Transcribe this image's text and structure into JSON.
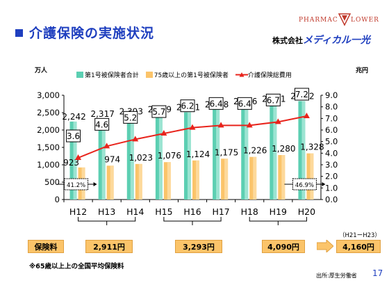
{
  "header": {
    "title": "介護保険の実施状況",
    "logo_left": "PHARMAC",
    "logo_right": "LOWER",
    "company_prefix": "株式会社",
    "company_name": "メディカル一光"
  },
  "units": {
    "left": "万人",
    "right": "兆円"
  },
  "chart_data": {
    "type": "bar",
    "categories": [
      "H12",
      "H13",
      "H14",
      "H15",
      "H16",
      "H17",
      "H18",
      "H19",
      "H20"
    ],
    "ylim": [
      0,
      3000
    ],
    "y2lim": [
      0,
      9
    ],
    "yticks": [
      "0",
      "500",
      "1,000",
      "1,500",
      "2,000",
      "2,500",
      "3,000"
    ],
    "y2ticks": [
      "0.0",
      "1.0",
      "2.0",
      "3.0",
      "4.0",
      "5.0",
      "6.0",
      "7.0",
      "8.0",
      "9.0"
    ],
    "series": [
      {
        "name": "第1号被保険者合計",
        "color": "#5ccfb2",
        "values": [
          2242,
          2317,
          2393,
          2449,
          2511,
          2588,
          2676,
          2751,
          2832
        ],
        "labels": [
          "2,242",
          "2,317",
          "2,393",
          "2,449",
          "2,511",
          "2,588",
          "2,676",
          "2,751",
          "2,832"
        ]
      },
      {
        "name": "75歳以上の第1号被保険者",
        "color": "#fbc46a",
        "values": [
          923,
          974,
          1023,
          1076,
          1124,
          1175,
          1226,
          1280,
          1328
        ],
        "labels": [
          "923",
          "974",
          "1,023",
          "1,076",
          "1,124",
          "1,175",
          "1,226",
          "1,280",
          "1,328"
        ]
      },
      {
        "name": "介護保険総費用",
        "color": "#e8241c",
        "axis": "right",
        "values": [
          3.6,
          4.6,
          5.2,
          5.7,
          6.2,
          6.4,
          6.4,
          6.7,
          7.2
        ],
        "labels": [
          "3.6",
          "4.6",
          "5.2",
          "5.7",
          "6.2",
          "6.4",
          "6.4",
          "6.7",
          "7.2"
        ]
      }
    ],
    "share_annotations": [
      {
        "text": "41.2%",
        "category_index": 0
      },
      {
        "text": "46.9%",
        "category_index": 8
      }
    ]
  },
  "premiums": {
    "label": "保険料",
    "values": [
      "2,911円",
      "3,293円",
      "4,090円"
    ],
    "future_range": "（H21ーH23）",
    "future_value": "4,160円"
  },
  "footnote": "※65歳以上上の全国平均保険料",
  "source": "出所:厚生労働省",
  "page_number": "17"
}
